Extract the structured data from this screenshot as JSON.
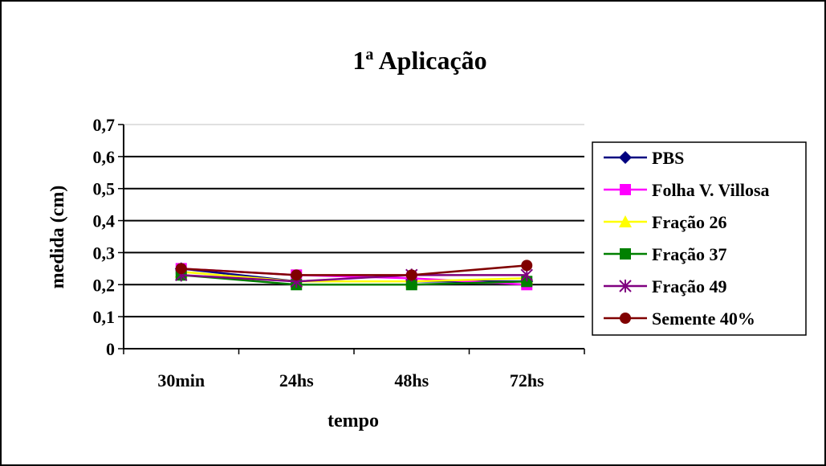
{
  "chart_data": {
    "type": "line",
    "title": "1",
    "title_superscript": "a",
    "title_rest": " Aplicação",
    "xlabel": "tempo",
    "ylabel": "medida (cm)",
    "categories": [
      "30min",
      "24hs",
      "48hs",
      "72hs"
    ],
    "ylim": [
      0,
      0.7
    ],
    "yticks": [
      "0",
      "0,1",
      "0,2",
      "0,3",
      "0,4",
      "0,5",
      "0,6",
      "0,7"
    ],
    "grid": true,
    "legend_position": "right",
    "series": [
      {
        "name": "PBS",
        "values": [
          0.25,
          0.21,
          0.21,
          0.21
        ],
        "color": "#000080",
        "marker": "diamond"
      },
      {
        "name": "Folha V. Villosa",
        "values": [
          0.25,
          0.23,
          0.22,
          0.2
        ],
        "color": "#ff00ff",
        "marker": "square"
      },
      {
        "name": "Fração 26",
        "values": [
          0.24,
          0.21,
          0.21,
          0.22
        ],
        "color": "#ffff00",
        "marker": "triangle"
      },
      {
        "name": "Fração 37",
        "values": [
          0.23,
          0.2,
          0.2,
          0.21
        ],
        "color": "#008000",
        "marker": "square"
      },
      {
        "name": "Fração 49",
        "values": [
          0.23,
          0.21,
          0.23,
          0.23
        ],
        "color": "#800080",
        "marker": "star"
      },
      {
        "name": "Semente 40%",
        "values": [
          0.25,
          0.23,
          0.23,
          0.26
        ],
        "color": "#800000",
        "marker": "circle"
      }
    ]
  }
}
